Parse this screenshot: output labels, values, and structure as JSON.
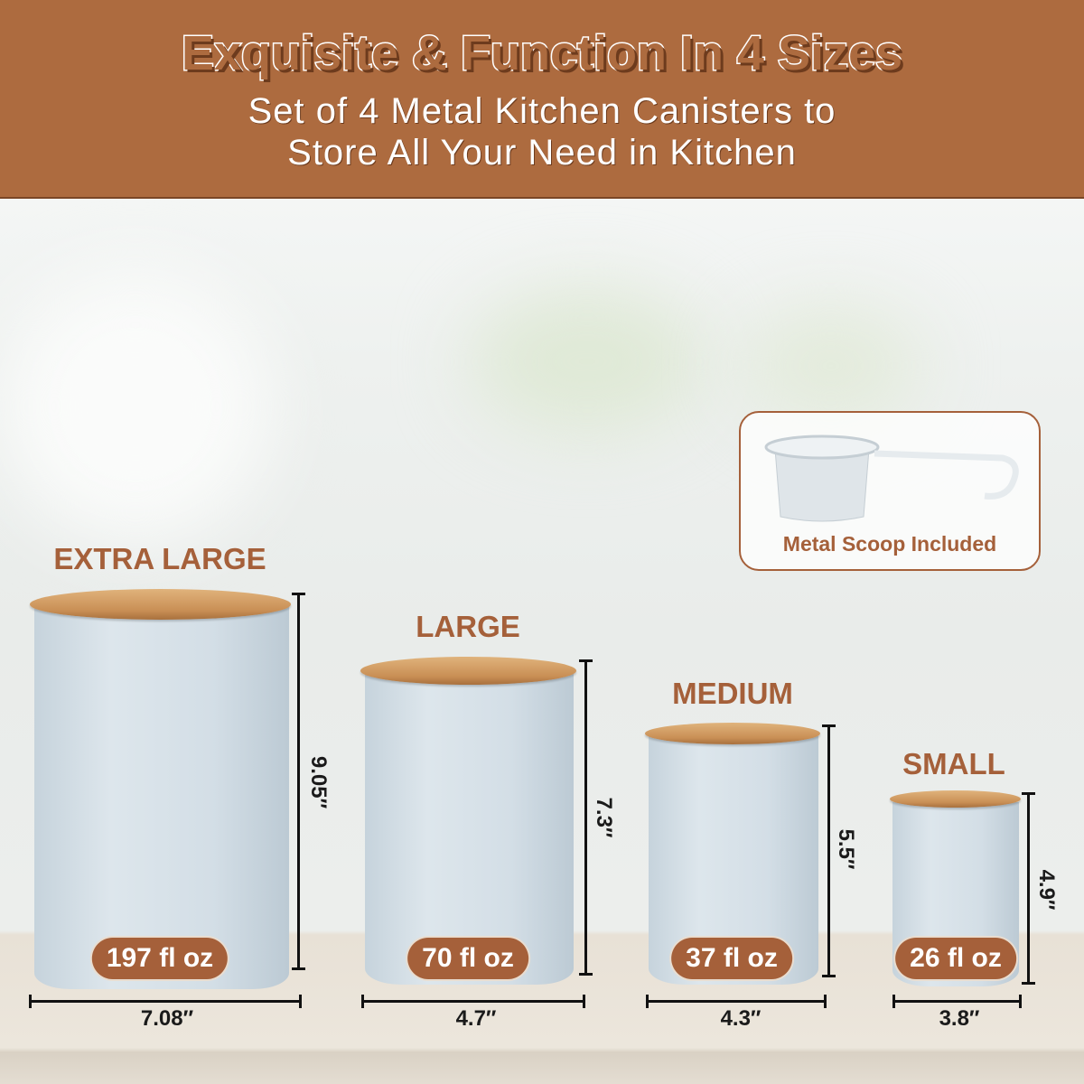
{
  "header": {
    "title": "Exquisite & Function In 4 Sizes",
    "subtitle_line1": "Set of 4 Metal Kitchen Canisters to",
    "subtitle_line2": "Store All Your Need in Kitchen"
  },
  "scoop": {
    "label": "Metal Scoop Included"
  },
  "canisters": [
    {
      "size": "EXTRA LARGE",
      "capacity": "197 fl oz",
      "height": "9.05″",
      "width": "7.08″"
    },
    {
      "size": "LARGE",
      "capacity": "70 fl oz",
      "height": "7.3″",
      "width": "4.7″"
    },
    {
      "size": "MEDIUM",
      "capacity": "37 fl oz",
      "height": "5.5″",
      "width": "4.3″"
    },
    {
      "size": "SMALL",
      "capacity": "26 fl oz",
      "height": "4.9″",
      "width": "3.8″"
    }
  ],
  "colors": {
    "brand": "#ad6b3f",
    "canister": "#d3dee6",
    "lid": "#c98f55"
  }
}
